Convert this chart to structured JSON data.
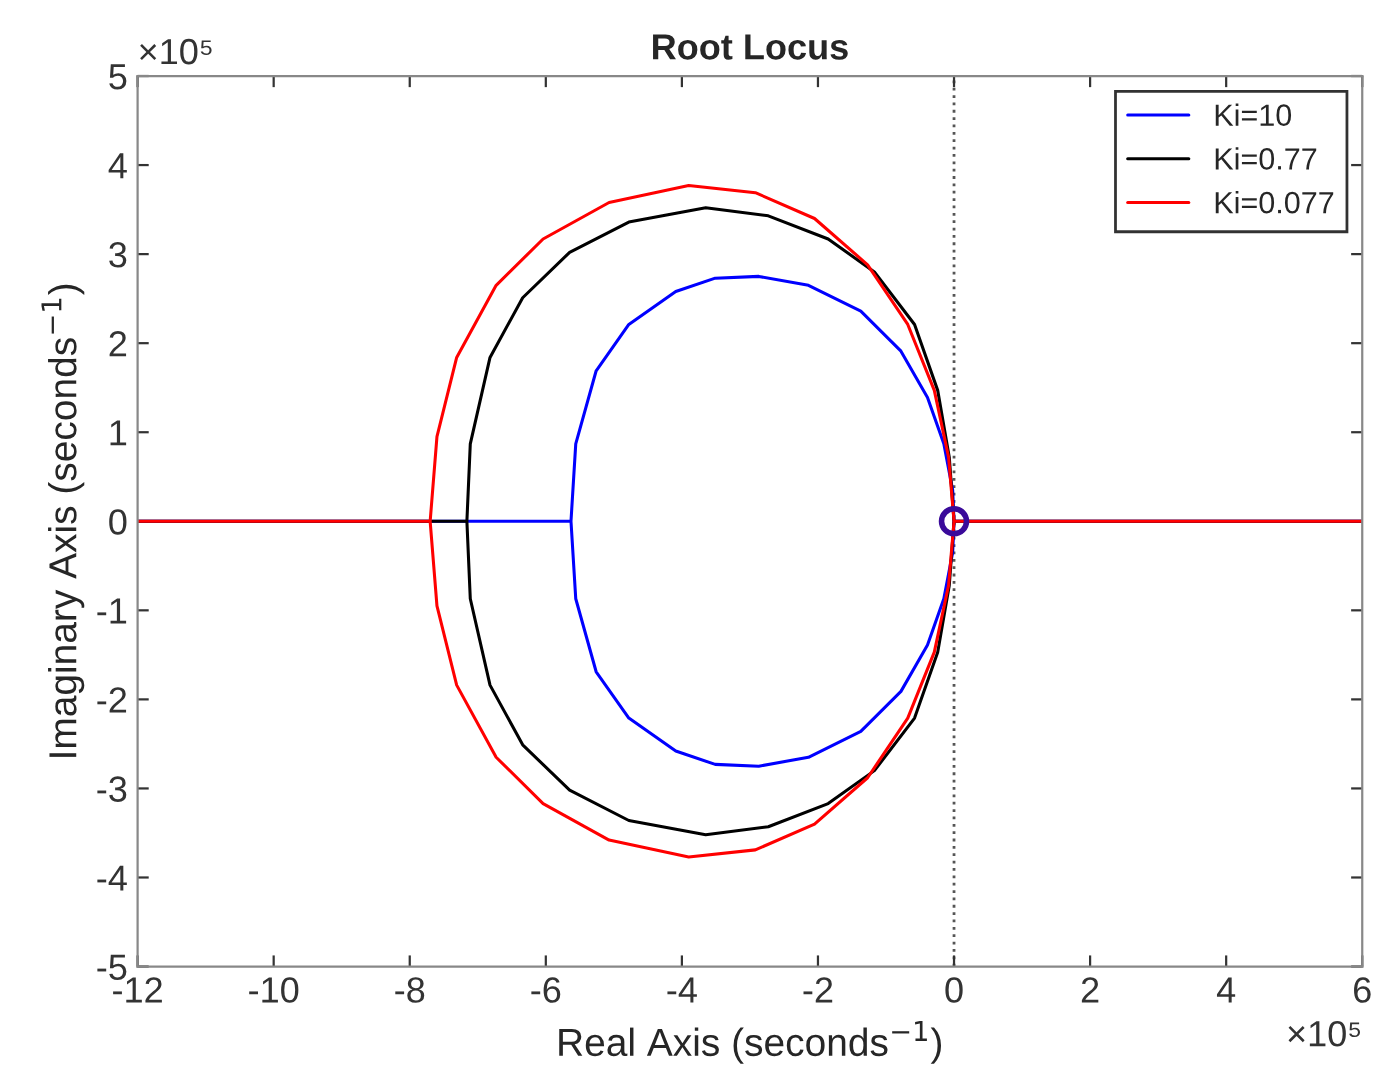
{
  "chart_data": {
    "type": "line",
    "title": "Root Locus",
    "xlabel": "Real Axis (seconds$^{−1}$)",
    "ylabel": "Imaginary Axis (seconds$^{−1}$)",
    "xlim": [
      -12,
      6
    ],
    "xticks": [
      -12,
      -10,
      -8,
      -6,
      -4,
      -2,
      0,
      2,
      4,
      6
    ],
    "ylim": [
      -5,
      5
    ],
    "yticks": [
      -5,
      -4,
      -3,
      -2,
      -1,
      0,
      1,
      2,
      3,
      4,
      5
    ],
    "annotations": [
      "×10⁵",
      "×10⁵"
    ],
    "grid": false,
    "legend": "top right",
    "line_style": "solid",
    "ref_lines": [
      {
        "axis": "x",
        "value": 0,
        "color": "#555555",
        "line_style": "dotted"
      }
    ],
    "series": [
      {
        "name": "Ki=10",
        "color": "#0000ff",
        "x": [
          -12,
          -5.63,
          -5.56,
          -5.26,
          -4.78,
          -4.09,
          -3.51,
          -2.87,
          -2.14,
          -1.37,
          -0.78,
          -0.39,
          -0.15,
          -0.02,
          0,
          6,
          0,
          -0.02,
          -0.15,
          -0.39,
          -0.78,
          -1.37,
          -2.14,
          -2.87,
          -3.51,
          -4.09,
          -4.78,
          -5.26,
          -5.56,
          -5.63
        ],
        "values": [
          0,
          0,
          0.87,
          1.69,
          2.21,
          2.58,
          2.73,
          2.75,
          2.65,
          2.36,
          1.91,
          1.39,
          0.87,
          0.35,
          0,
          0,
          0,
          -0.35,
          -0.87,
          -1.39,
          -1.91,
          -2.36,
          -2.65,
          -2.75,
          -2.73,
          -2.58,
          -2.21,
          -1.69,
          -0.87,
          0
        ]
      },
      {
        "name": "Ki=0.77",
        "color": "#000000",
        "x": [
          -12,
          -7.16,
          -7.11,
          -6.82,
          -6.34,
          -5.65,
          -4.78,
          -3.65,
          -2.73,
          -1.85,
          -1.17,
          -0.58,
          -0.24,
          -0.07,
          0,
          6,
          0,
          -0.07,
          -0.24,
          -0.58,
          -1.17,
          -1.85,
          -2.73,
          -3.65,
          -4.78,
          -5.65,
          -6.34,
          -6.82,
          -7.11,
          -7.16
        ],
        "values": [
          0,
          0,
          0.87,
          1.84,
          2.51,
          3.02,
          3.36,
          3.52,
          3.43,
          3.17,
          2.8,
          2.21,
          1.47,
          0.72,
          0,
          0,
          0,
          -0.72,
          -1.47,
          -2.21,
          -2.8,
          -3.17,
          -3.43,
          -3.52,
          -3.36,
          -3.02,
          -2.51,
          -1.84,
          -0.87,
          0
        ]
      },
      {
        "name": "Ki=0.077",
        "color": "#ff0000",
        "x": [
          -12,
          -7.7,
          -7.6,
          -7.31,
          -6.73,
          -6.04,
          -5.07,
          -3.9,
          -2.92,
          -2.05,
          -1.27,
          -0.68,
          -0.29,
          -0.08,
          0,
          6,
          0,
          -0.08,
          -0.29,
          -0.68,
          -1.27,
          -2.05,
          -2.92,
          -3.9,
          -5.07,
          -6.04,
          -6.73,
          -7.31,
          -7.6,
          -7.7
        ],
        "values": [
          0,
          0,
          0.95,
          1.84,
          2.65,
          3.17,
          3.58,
          3.77,
          3.69,
          3.4,
          2.88,
          2.21,
          1.47,
          0.72,
          0,
          0,
          0,
          -0.72,
          -1.47,
          -2.21,
          -2.88,
          -3.4,
          -3.69,
          -3.77,
          -3.58,
          -3.17,
          -2.65,
          -1.84,
          -0.95,
          0
        ]
      },
      {
        "type": "scatter",
        "marker": "circle",
        "color": "#3a0a9a",
        "x": [
          0
        ],
        "values": [
          0
        ]
      }
    ]
  }
}
